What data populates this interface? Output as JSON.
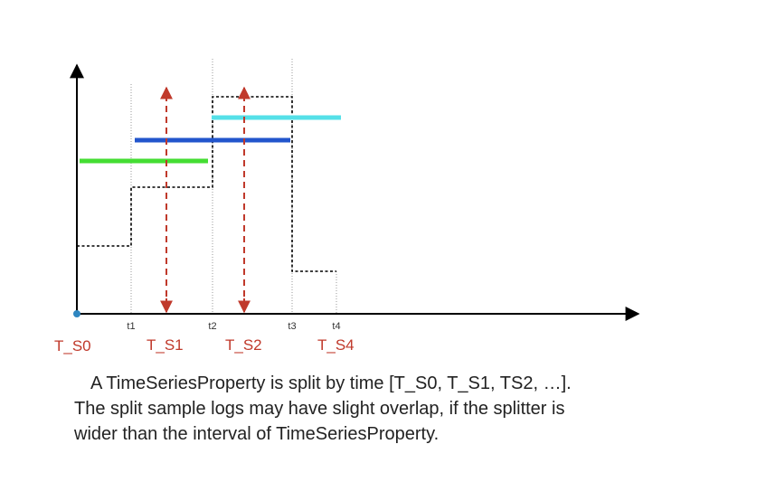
{
  "colors": {
    "axis": "#000000",
    "step": "#000000",
    "splitter_arrow": "#c0392b",
    "split_label": "#c0392b",
    "guide": "#999999",
    "green_log": "#44dd33",
    "blue_log": "#2255cc",
    "cyan_log": "#55e0e8",
    "origin_dot": "#2e86c1"
  },
  "time_ticks": [
    "t1",
    "t2",
    "t3",
    "t4"
  ],
  "split_labels": [
    "T_S0",
    "T_S1",
    "T_S2",
    "T_S4"
  ],
  "caption": {
    "line1": "A TimeSeriesProperty is split by time [T_S0, T_S1, TS2, …].",
    "line2": "The split sample logs may have slight overlap, if the splitter is",
    "line3": "wider than the interval of TimeSeriesProperty."
  }
}
